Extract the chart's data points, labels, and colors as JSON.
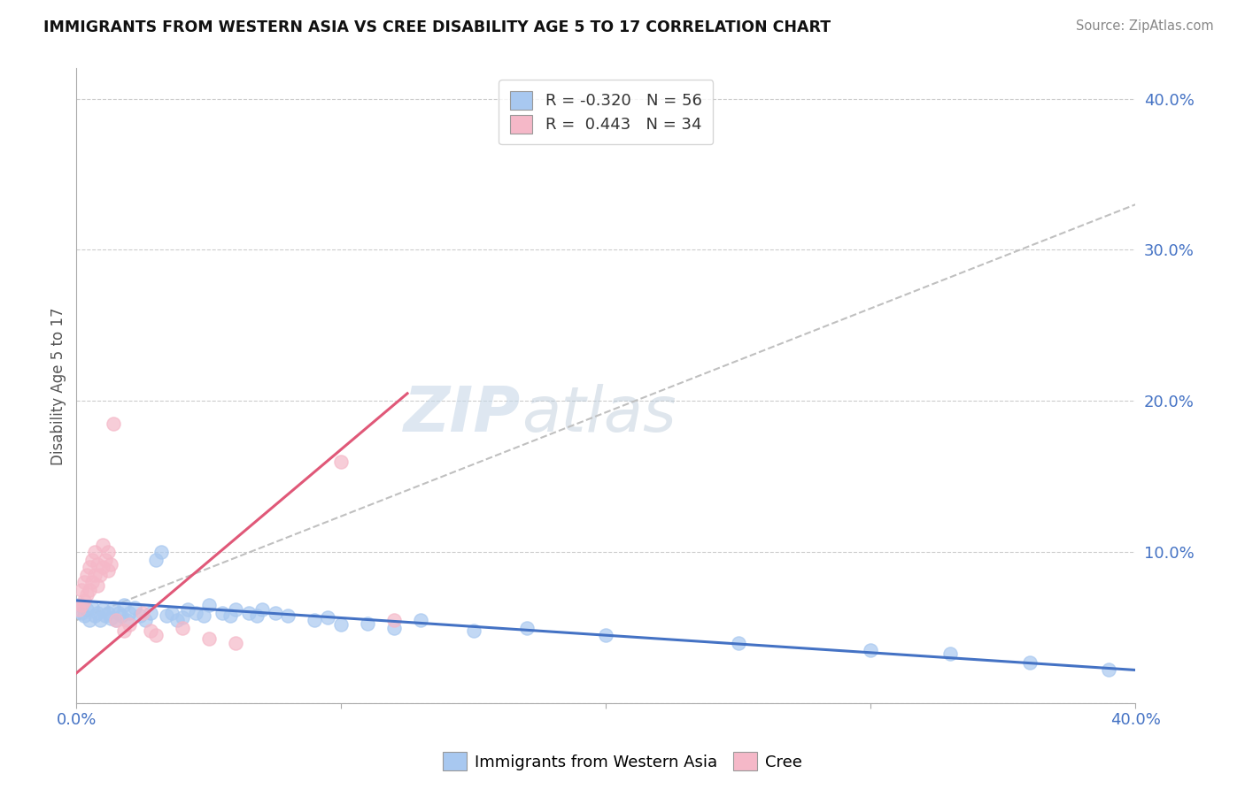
{
  "title": "IMMIGRANTS FROM WESTERN ASIA VS CREE DISABILITY AGE 5 TO 17 CORRELATION CHART",
  "source": "Source: ZipAtlas.com",
  "ylabel": "Disability Age 5 to 17",
  "xlim": [
    0.0,
    0.4
  ],
  "ylim": [
    0.0,
    0.42
  ],
  "ytick_positions": [
    0.0,
    0.1,
    0.2,
    0.3,
    0.4
  ],
  "yticklabels_right": [
    "",
    "10.0%",
    "20.0%",
    "30.0%",
    "40.0%"
  ],
  "blue_R": -0.32,
  "blue_N": 56,
  "pink_R": 0.443,
  "pink_N": 34,
  "blue_color": "#a8c8f0",
  "pink_color": "#f5b8c8",
  "blue_line_color": "#4472c4",
  "pink_line_color": "#e05878",
  "blue_line": [
    [
      0.0,
      0.068
    ],
    [
      0.4,
      0.022
    ]
  ],
  "pink_line": [
    [
      0.0,
      0.02
    ],
    [
      0.125,
      0.205
    ]
  ],
  "dash_line": [
    [
      0.0,
      0.055
    ],
    [
      0.4,
      0.33
    ]
  ],
  "blue_scatter": [
    [
      0.001,
      0.065
    ],
    [
      0.002,
      0.06
    ],
    [
      0.003,
      0.058
    ],
    [
      0.004,
      0.062
    ],
    [
      0.005,
      0.055
    ],
    [
      0.006,
      0.063
    ],
    [
      0.007,
      0.058
    ],
    [
      0.008,
      0.06
    ],
    [
      0.009,
      0.055
    ],
    [
      0.01,
      0.062
    ],
    [
      0.011,
      0.058
    ],
    [
      0.012,
      0.06
    ],
    [
      0.013,
      0.056
    ],
    [
      0.014,
      0.063
    ],
    [
      0.015,
      0.055
    ],
    [
      0.016,
      0.06
    ],
    [
      0.017,
      0.058
    ],
    [
      0.018,
      0.065
    ],
    [
      0.019,
      0.055
    ],
    [
      0.02,
      0.06
    ],
    [
      0.022,
      0.063
    ],
    [
      0.024,
      0.058
    ],
    [
      0.026,
      0.055
    ],
    [
      0.028,
      0.06
    ],
    [
      0.03,
      0.095
    ],
    [
      0.032,
      0.1
    ],
    [
      0.034,
      0.058
    ],
    [
      0.036,
      0.06
    ],
    [
      0.038,
      0.055
    ],
    [
      0.04,
      0.057
    ],
    [
      0.042,
      0.062
    ],
    [
      0.045,
      0.06
    ],
    [
      0.048,
      0.058
    ],
    [
      0.05,
      0.065
    ],
    [
      0.055,
      0.06
    ],
    [
      0.058,
      0.058
    ],
    [
      0.06,
      0.062
    ],
    [
      0.065,
      0.06
    ],
    [
      0.068,
      0.058
    ],
    [
      0.07,
      0.062
    ],
    [
      0.075,
      0.06
    ],
    [
      0.08,
      0.058
    ],
    [
      0.09,
      0.055
    ],
    [
      0.095,
      0.057
    ],
    [
      0.1,
      0.052
    ],
    [
      0.11,
      0.053
    ],
    [
      0.12,
      0.05
    ],
    [
      0.13,
      0.055
    ],
    [
      0.15,
      0.048
    ],
    [
      0.17,
      0.05
    ],
    [
      0.2,
      0.045
    ],
    [
      0.25,
      0.04
    ],
    [
      0.3,
      0.035
    ],
    [
      0.33,
      0.033
    ],
    [
      0.36,
      0.027
    ],
    [
      0.39,
      0.022
    ]
  ],
  "pink_scatter": [
    [
      0.001,
      0.062
    ],
    [
      0.002,
      0.065
    ],
    [
      0.002,
      0.075
    ],
    [
      0.003,
      0.068
    ],
    [
      0.003,
      0.08
    ],
    [
      0.004,
      0.072
    ],
    [
      0.004,
      0.085
    ],
    [
      0.005,
      0.075
    ],
    [
      0.005,
      0.09
    ],
    [
      0.006,
      0.08
    ],
    [
      0.006,
      0.095
    ],
    [
      0.007,
      0.085
    ],
    [
      0.007,
      0.1
    ],
    [
      0.008,
      0.078
    ],
    [
      0.008,
      0.092
    ],
    [
      0.009,
      0.085
    ],
    [
      0.01,
      0.09
    ],
    [
      0.01,
      0.105
    ],
    [
      0.011,
      0.095
    ],
    [
      0.012,
      0.088
    ],
    [
      0.012,
      0.1
    ],
    [
      0.013,
      0.092
    ],
    [
      0.014,
      0.185
    ],
    [
      0.015,
      0.055
    ],
    [
      0.018,
      0.048
    ],
    [
      0.02,
      0.052
    ],
    [
      0.025,
      0.06
    ],
    [
      0.028,
      0.048
    ],
    [
      0.03,
      0.045
    ],
    [
      0.04,
      0.05
    ],
    [
      0.05,
      0.043
    ],
    [
      0.06,
      0.04
    ],
    [
      0.1,
      0.16
    ],
    [
      0.12,
      0.055
    ]
  ],
  "watermark_zip": "ZIP",
  "watermark_atlas": "atlas",
  "bg_color": "#ffffff",
  "grid_color": "#cccccc"
}
